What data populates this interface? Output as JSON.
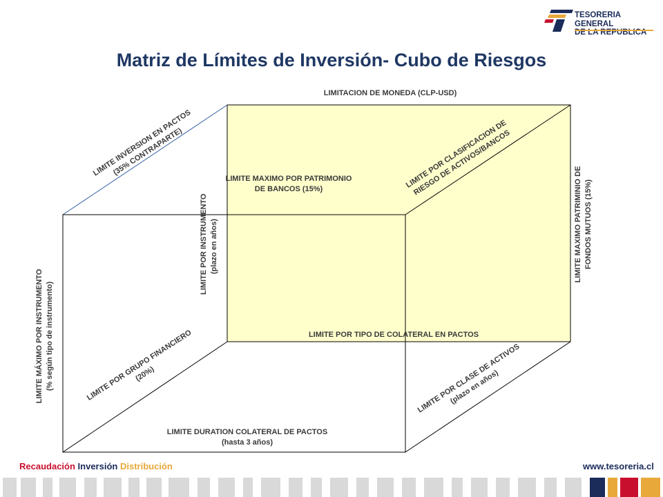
{
  "header": {
    "logo_line1": "TESORERIA GENERAL",
    "logo_line2": "DE LA REPUBLICA",
    "logo_colors": [
      "#1b2b5a",
      "#e8a83a",
      "#c8102e"
    ]
  },
  "title": "Matriz de Límites de Inversión- Cubo de Riesgos",
  "labels": {
    "moneda": "LIMITACION DE MONEDA (CLP-USD)",
    "pactos_1": "LIMITE INVERSION EN PACTOS",
    "pactos_2": "(35% CONTRAPARTE)",
    "patrimonio_bancos_1": "LIMITE MAXIMO POR PATRIMONIO",
    "patrimonio_bancos_2": "DE BANCOS (15%)",
    "clasificacion_1": "LIMITE POR CLASIFICACION DE",
    "clasificacion_2": "RIESGO DE ACTIVOS/BANCOS",
    "fondos_1": "LIMITE MAXIMO PATRIMINIO DE",
    "fondos_2": "FONDOS MUTUOS (15%)",
    "instrumento_plazo_1": "LIMITE POR INSTRUMENTO",
    "instrumento_plazo_2": "(plazo en años)",
    "instrumento_tipo_1": "LIMITE MÁXIMO POR INSTRUMENTO",
    "instrumento_tipo_2": "(% según tipo de instrumento)",
    "colateral": "LIMITE POR TIPO DE COLATERAL EN PACTOS",
    "grupo_1": "LIMITE POR GRUPO FINANCIERO",
    "grupo_2": "(20%)",
    "clase_1": "LIMITE POR CLASE DE ACTIVOS",
    "clase_2": "(plazo en años)",
    "duration_1": "LIMITE DURATION COLATERAL DE PACTOS",
    "duration_2": "(hasta 3 años)"
  },
  "footer": {
    "word1": "Recaudación",
    "word2": "Inversión",
    "word3": "Distribución",
    "word1_color": "#c8102e",
    "word2_color": "#1b2b5a",
    "word3_color": "#e8a83a",
    "website": "www.tesoreria.cl"
  },
  "colors": {
    "title": "#1f3864",
    "back_face": "#ffffcc",
    "edge": "#000000",
    "diagonal_edge": "#2e5fa3"
  }
}
